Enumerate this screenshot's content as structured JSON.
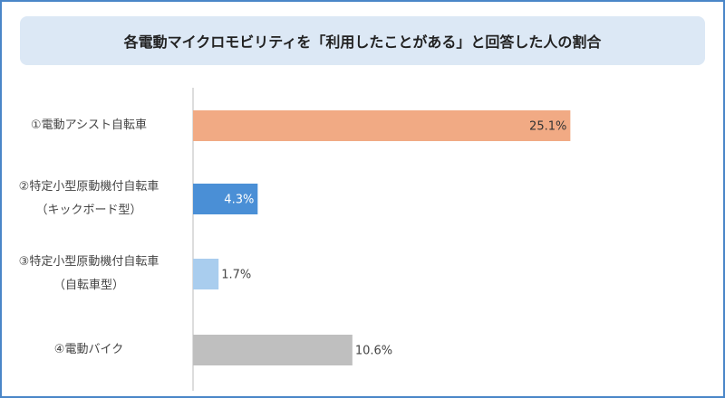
{
  "chart_data": {
    "type": "bar",
    "orientation": "horizontal",
    "title": "各電動マイクロモビリティを「利用したことがある」と回答した人の割合",
    "categories": [
      "①電動アシスト自転車",
      "②特定小型原動機付自転車\n（キックボード型）",
      "③特定小型原動機付自転車\n（自転車型）",
      "④電動バイク"
    ],
    "values": [
      25.1,
      4.3,
      1.7,
      10.6
    ],
    "value_labels": [
      "25.1%",
      "4.3%",
      "1.7%",
      "10.6%"
    ],
    "colors": [
      "#f1aa84",
      "#4a8fd6",
      "#a9cdee",
      "#bfbfbf"
    ],
    "label_inside": [
      true,
      true,
      false,
      false
    ],
    "label_colors": [
      "#333333",
      "#ffffff",
      "#444444",
      "#444444"
    ],
    "xlim": [
      0,
      34
    ]
  }
}
